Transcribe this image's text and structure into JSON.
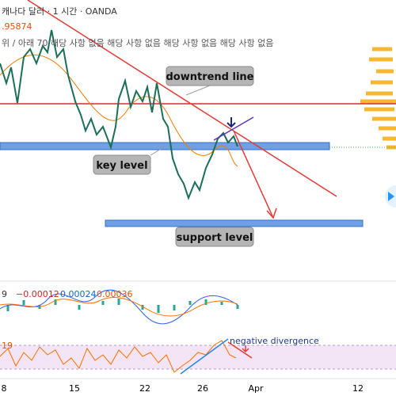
{
  "header": {
    "title": "캐나다 달러 · 1 시간 · OANDA",
    "price": ".95874",
    "indicator": "위 / 아래 70  해당 사항 없음  해당 사항 없음  해당 사항 없음  해당 사항 없음"
  },
  "annotations": {
    "downtrend": "downtrend line",
    "key": "key level",
    "support": "support level",
    "divergence": "negative divergence"
  },
  "macd": {
    "period": "9",
    "values": [
      "−0.00012",
      "0.00024",
      "0.00036"
    ]
  },
  "rsi": {
    "label": "19"
  },
  "x_axis": [
    "8",
    "15",
    "22",
    "26",
    "Apr",
    "12"
  ]
}
